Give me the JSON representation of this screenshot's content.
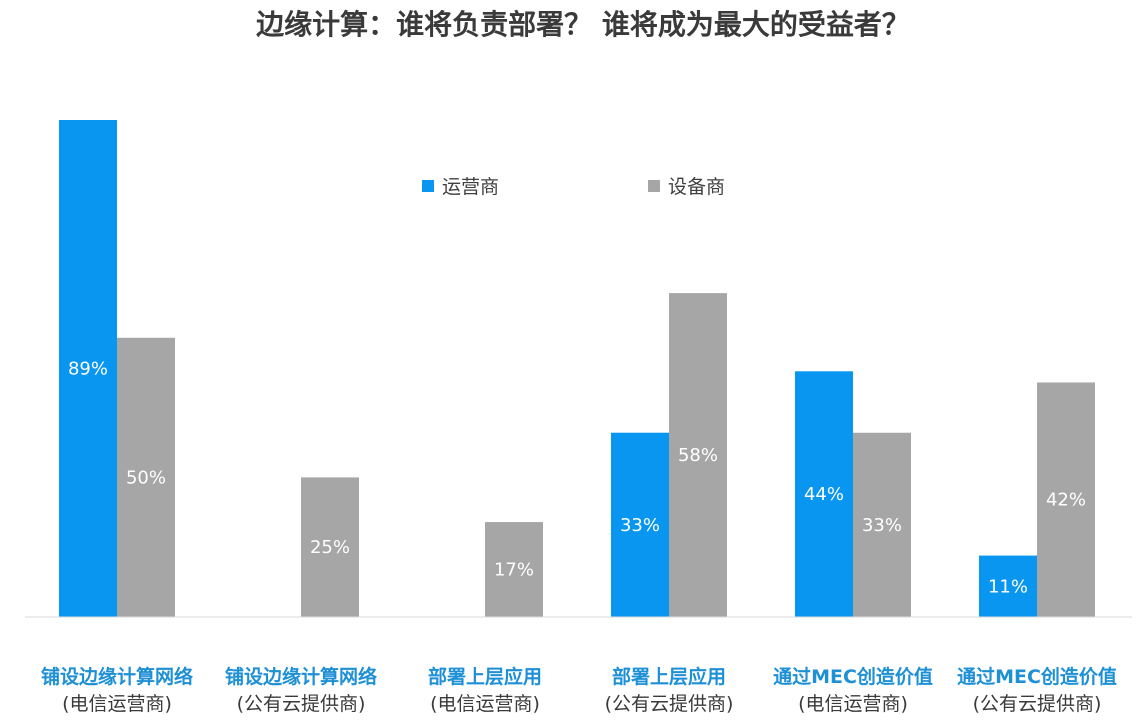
{
  "chart_data": {
    "type": "bar",
    "title": "边缘计算：谁将负责部署？ 谁将成为最大的受益者？",
    "categories": [
      [
        "铺设边缘计算网络",
        "(电信运营商)"
      ],
      [
        "铺设边缘计算网络",
        "(公有云提供商)"
      ],
      [
        "部署上层应用",
        "(电信运营商)"
      ],
      [
        "部署上层应用",
        "(公有云提供商)"
      ],
      [
        "通过MEC创造价值",
        "(电信运营商)"
      ],
      [
        "通过MEC创造价值",
        "(公有云提供商)"
      ]
    ],
    "series": [
      {
        "name": "运营商",
        "color": "#0996f0",
        "values": [
          89,
          null,
          null,
          33,
          44,
          11
        ],
        "labels": [
          "89%",
          "",
          "",
          "33%",
          "44%",
          "11%"
        ]
      },
      {
        "name": "设备商",
        "color": "#a6a6a6",
        "values": [
          50,
          25,
          17,
          58,
          33,
          42
        ],
        "labels": [
          "50%",
          "25%",
          "17%",
          "58%",
          "33%",
          "42%"
        ]
      }
    ],
    "ylim": [
      0,
      100
    ],
    "xlabel": "",
    "ylabel": "",
    "grid": false,
    "legend": "top-center"
  },
  "colors": {
    "category_main": "#1e90d6",
    "category_sub": "#3a3a3a",
    "baseline": "#d9d9d9"
  }
}
